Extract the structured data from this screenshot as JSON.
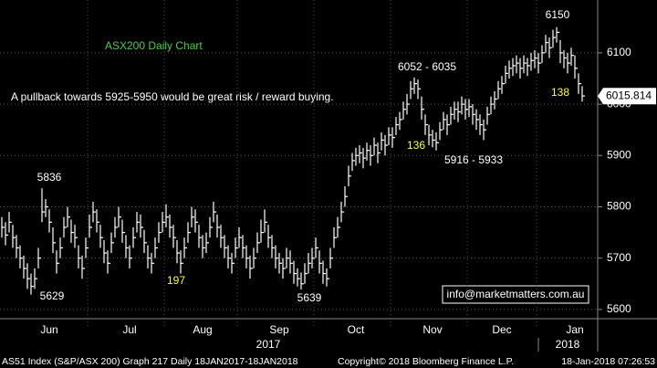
{
  "chart_data": {
    "type": "ohlc",
    "title": "ASX200 Daily Chart",
    "subtitle": "A pullback towards 5925-5950 would be great risk / reward buying.",
    "ylim": [
      5582,
      6203
    ],
    "yticks": [
      5600,
      5700,
      5800,
      5900,
      6000,
      6100
    ],
    "grid": true,
    "color": "#ffffff",
    "xticks": [
      {
        "value": 13,
        "label": "Jun"
      },
      {
        "value": 35,
        "label": "Jul"
      },
      {
        "value": 55,
        "label": "Aug"
      },
      {
        "value": 76,
        "label": "Sep"
      },
      {
        "value": 97,
        "label": "Oct"
      },
      {
        "value": 118,
        "label": "Nov"
      },
      {
        "value": 137,
        "label": "Dec"
      },
      {
        "value": 157,
        "label": "Jan"
      }
    ],
    "xgrid": [
      24,
      45,
      65,
      86,
      107,
      128,
      147
    ],
    "years": [
      {
        "value": 73,
        "label": "2017"
      },
      {
        "value": 155,
        "label": "2018"
      }
    ],
    "close": [
      5760,
      5745,
      5770,
      5740,
      5720,
      5700,
      5680,
      5660,
      5645,
      5660,
      5700,
      5790,
      5800,
      5770,
      5730,
      5690,
      5720,
      5760,
      5780,
      5750,
      5740,
      5700,
      5680,
      5720,
      5760,
      5790,
      5770,
      5740,
      5710,
      5690,
      5730,
      5760,
      5780,
      5750,
      5720,
      5700,
      5740,
      5770,
      5760,
      5730,
      5700,
      5690,
      5720,
      5750,
      5770,
      5780,
      5760,
      5740,
      5710,
      5690,
      5720,
      5750,
      5780,
      5770,
      5740,
      5720,
      5730,
      5760,
      5790,
      5760,
      5740,
      5720,
      5700,
      5690,
      5720,
      5740,
      5720,
      5700,
      5680,
      5700,
      5730,
      5750,
      5770,
      5740,
      5720,
      5700,
      5690,
      5680,
      5700,
      5690,
      5670,
      5660,
      5650,
      5670,
      5690,
      5700,
      5720,
      5690,
      5670,
      5660,
      5700,
      5740,
      5760,
      5790,
      5820,
      5860,
      5890,
      5900,
      5905,
      5895,
      5910,
      5900,
      5920,
      5905,
      5930,
      5920,
      5940,
      5935,
      5960,
      5970,
      5990,
      6000,
      6030,
      6040,
      6030,
      5990,
      5960,
      5940,
      5930,
      5925,
      5950,
      5970,
      5960,
      5980,
      5990,
      5985,
      6000,
      5990,
      5995,
      5980,
      5970,
      5960,
      5950,
      5980,
      6000,
      6010,
      6030,
      6040,
      6060,
      6070,
      6075,
      6080,
      6070,
      6080,
      6075,
      6085,
      6090,
      6080,
      6100,
      6120,
      6110,
      6130,
      6140,
      6100,
      6090,
      6080,
      6095,
      6070,
      6040,
      6016
    ],
    "high": [
      5780,
      5770,
      5790,
      5765,
      5745,
      5725,
      5705,
      5690,
      5670,
      5680,
      5720,
      5836,
      5815,
      5795,
      5760,
      5715,
      5740,
      5780,
      5800,
      5775,
      5765,
      5725,
      5705,
      5740,
      5785,
      5810,
      5795,
      5765,
      5735,
      5715,
      5750,
      5780,
      5800,
      5775,
      5745,
      5725,
      5760,
      5790,
      5785,
      5755,
      5725,
      5710,
      5740,
      5770,
      5790,
      5805,
      5785,
      5765,
      5735,
      5715,
      5740,
      5770,
      5800,
      5795,
      5765,
      5745,
      5750,
      5780,
      5810,
      5785,
      5765,
      5745,
      5725,
      5710,
      5740,
      5760,
      5745,
      5725,
      5705,
      5720,
      5750,
      5775,
      5795,
      5765,
      5745,
      5725,
      5710,
      5700,
      5720,
      5715,
      5695,
      5680,
      5672,
      5690,
      5710,
      5720,
      5740,
      5715,
      5695,
      5680,
      5720,
      5760,
      5780,
      5810,
      5840,
      5880,
      5905,
      5915,
      5920,
      5915,
      5925,
      5920,
      5935,
      5925,
      5945,
      5940,
      5955,
      5955,
      5975,
      5985,
      6005,
      6020,
      6045,
      6052,
      6048,
      6015,
      5980,
      5960,
      5950,
      5945,
      5965,
      5985,
      5980,
      5995,
      6005,
      6005,
      6015,
      6010,
      6010,
      6000,
      5990,
      5980,
      5970,
      5995,
      6015,
      6025,
      6045,
      6055,
      6075,
      6085,
      6090,
      6095,
      6090,
      6095,
      6090,
      6100,
      6105,
      6100,
      6115,
      6135,
      6130,
      6145,
      6150,
      6125,
      6105,
      6100,
      6110,
      6095,
      6060,
      6035
    ],
    "low": [
      5740,
      5725,
      5750,
      5720,
      5700,
      5680,
      5660,
      5640,
      5629,
      5640,
      5680,
      5770,
      5780,
      5750,
      5710,
      5670,
      5700,
      5740,
      5760,
      5730,
      5720,
      5680,
      5660,
      5700,
      5740,
      5770,
      5750,
      5720,
      5690,
      5670,
      5710,
      5740,
      5760,
      5730,
      5700,
      5680,
      5720,
      5750,
      5740,
      5710,
      5680,
      5670,
      5700,
      5730,
      5750,
      5760,
      5740,
      5720,
      5690,
      5670,
      5700,
      5730,
      5760,
      5750,
      5720,
      5700,
      5710,
      5740,
      5770,
      5740,
      5720,
      5700,
      5680,
      5670,
      5700,
      5720,
      5700,
      5680,
      5660,
      5680,
      5710,
      5730,
      5750,
      5720,
      5700,
      5680,
      5670,
      5660,
      5680,
      5670,
      5650,
      5645,
      5639,
      5650,
      5670,
      5680,
      5700,
      5670,
      5650,
      5645,
      5680,
      5720,
      5740,
      5770,
      5800,
      5840,
      5870,
      5880,
      5885,
      5875,
      5890,
      5880,
      5900,
      5885,
      5910,
      5900,
      5920,
      5915,
      5940,
      5950,
      5970,
      5980,
      6010,
      6020,
      6010,
      5970,
      5940,
      5920,
      5916,
      5910,
      5930,
      5950,
      5940,
      5960,
      5970,
      5965,
      5980,
      5970,
      5975,
      5960,
      5950,
      5940,
      5930,
      5960,
      5980,
      5990,
      6010,
      6020,
      6040,
      6050,
      6055,
      6060,
      6050,
      6060,
      6055,
      6065,
      6070,
      6060,
      6080,
      6100,
      6090,
      6110,
      6120,
      6080,
      6070,
      6060,
      6075,
      6050,
      6020,
      6005
    ],
    "last_price": 6015.814,
    "annotations": [
      "6150",
      "6052 - 6035",
      "5916 - 5933",
      "5836",
      "5629",
      "5639",
      "197",
      "136",
      "138"
    ],
    "contact": "info@marketmatters.com.au",
    "footer": [
      "AS51 Index (S&P/ASX 200) Graph 217  Daily 18JAN2017-18JAN2018",
      "Copyright© 2018 Bloomberg Finance L.P.",
      "18-Jan-2018 07:26:53"
    ]
  }
}
